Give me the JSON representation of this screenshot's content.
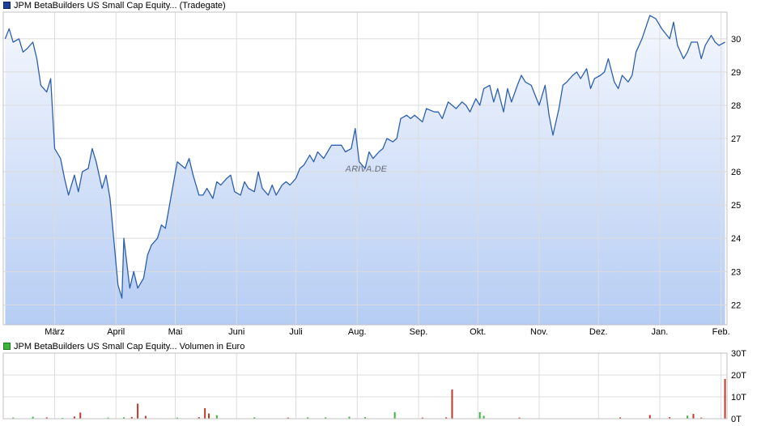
{
  "price_legend": {
    "label": "JPM BetaBuilders US Small Cap Equity... (Tradegate)",
    "color": "#1f3f9a"
  },
  "volume_legend": {
    "label": "JPM BetaBuilders US Small Cap Equity... Volumen in Euro",
    "color": "#3cb43c"
  },
  "watermark": "ARIVA.DE",
  "colors": {
    "line": "#2c5fae",
    "fill_top": "#f4f7fe",
    "fill_bottom": "#b6cdf3",
    "grid": "#dcdcdc",
    "vol_up": "#3cb43c",
    "vol_down": "#c0392b"
  },
  "chart_data": [
    {
      "type": "area",
      "y_ticks": [
        22,
        23,
        24,
        25,
        26,
        27,
        28,
        29,
        30
      ],
      "ylim": [
        21.4,
        30.8
      ],
      "x_ticks": [
        {
          "label": "März",
          "date": "2024-03-01"
        },
        {
          "label": "April",
          "date": "2024-04-01"
        },
        {
          "label": "Mai",
          "date": "2024-05-01"
        },
        {
          "label": "Juni",
          "date": "2024-06-01"
        },
        {
          "label": "Juli",
          "date": "2024-07-01"
        },
        {
          "label": "Aug.",
          "date": "2024-08-01"
        },
        {
          "label": "Sep.",
          "date": "2024-09-01"
        },
        {
          "label": "Okt.",
          "date": "2024-10-01"
        },
        {
          "label": "Nov.",
          "date": "2024-11-01"
        },
        {
          "label": "Dez.",
          "date": "2024-12-01"
        },
        {
          "label": "Jan.",
          "date": "2025-01-01"
        },
        {
          "label": "Feb.",
          "date": "2025-02-01"
        }
      ],
      "xlim": [
        "2024-02-04",
        "2025-02-04"
      ],
      "grid": true,
      "series": [
        {
          "x": [
            "2024-02-05",
            "2024-02-07",
            "2024-02-09",
            "2024-02-12",
            "2024-02-14",
            "2024-02-16",
            "2024-02-19",
            "2024-02-21",
            "2024-02-23",
            "2024-02-26",
            "2024-02-28",
            "2024-03-01",
            "2024-03-04",
            "2024-03-06",
            "2024-03-08",
            "2024-03-11",
            "2024-03-13",
            "2024-03-15",
            "2024-03-18",
            "2024-03-20",
            "2024-03-22",
            "2024-03-25",
            "2024-03-27",
            "2024-03-29",
            "2024-04-02",
            "2024-04-04",
            "2024-04-05",
            "2024-04-08",
            "2024-04-10",
            "2024-04-12",
            "2024-04-15",
            "2024-04-17",
            "2024-04-19",
            "2024-04-22",
            "2024-04-24",
            "2024-04-26",
            "2024-04-29",
            "2024-05-02",
            "2024-05-06",
            "2024-05-08",
            "2024-05-10",
            "2024-05-13",
            "2024-05-15",
            "2024-05-17",
            "2024-05-20",
            "2024-05-22",
            "2024-05-24",
            "2024-05-27",
            "2024-05-29",
            "2024-05-31",
            "2024-06-03",
            "2024-06-05",
            "2024-06-07",
            "2024-06-10",
            "2024-06-12",
            "2024-06-14",
            "2024-06-17",
            "2024-06-19",
            "2024-06-21",
            "2024-06-24",
            "2024-06-26",
            "2024-06-28",
            "2024-07-01",
            "2024-07-03",
            "2024-07-05",
            "2024-07-08",
            "2024-07-10",
            "2024-07-12",
            "2024-07-15",
            "2024-07-17",
            "2024-07-19",
            "2024-07-22",
            "2024-07-24",
            "2024-07-26",
            "2024-07-29",
            "2024-07-31",
            "2024-08-02",
            "2024-08-05",
            "2024-08-07",
            "2024-08-09",
            "2024-08-12",
            "2024-08-14",
            "2024-08-16",
            "2024-08-19",
            "2024-08-21",
            "2024-08-23",
            "2024-08-26",
            "2024-08-28",
            "2024-08-30",
            "2024-09-03",
            "2024-09-05",
            "2024-09-09",
            "2024-09-11",
            "2024-09-13",
            "2024-09-16",
            "2024-09-18",
            "2024-09-20",
            "2024-09-23",
            "2024-09-25",
            "2024-09-27",
            "2024-09-30",
            "2024-10-02",
            "2024-10-04",
            "2024-10-07",
            "2024-10-09",
            "2024-10-11",
            "2024-10-14",
            "2024-10-16",
            "2024-10-18",
            "2024-10-21",
            "2024-10-23",
            "2024-10-25",
            "2024-10-28",
            "2024-10-30",
            "2024-11-01",
            "2024-11-04",
            "2024-11-06",
            "2024-11-08",
            "2024-11-11",
            "2024-11-13",
            "2024-11-15",
            "2024-11-18",
            "2024-11-20",
            "2024-11-22",
            "2024-11-25",
            "2024-11-27",
            "2024-11-29",
            "2024-12-02",
            "2024-12-04",
            "2024-12-06",
            "2024-12-09",
            "2024-12-11",
            "2024-12-13",
            "2024-12-16",
            "2024-12-18",
            "2024-12-20",
            "2024-12-23",
            "2024-12-27",
            "2024-12-30",
            "2025-01-02",
            "2025-01-06",
            "2025-01-08",
            "2025-01-10",
            "2025-01-13",
            "2025-01-15",
            "2025-01-17",
            "2025-01-20",
            "2025-01-22",
            "2025-01-24",
            "2025-01-27",
            "2025-01-29",
            "2025-01-31",
            "2025-02-03"
          ],
          "y": [
            30.0,
            30.3,
            29.9,
            30.0,
            29.6,
            29.7,
            29.9,
            29.4,
            28.6,
            28.4,
            28.8,
            26.7,
            26.4,
            25.8,
            25.3,
            25.9,
            25.4,
            26.0,
            26.1,
            26.7,
            26.3,
            25.5,
            25.9,
            25.2,
            22.6,
            22.2,
            24.0,
            22.5,
            23.0,
            22.5,
            22.8,
            23.5,
            23.8,
            24.0,
            24.4,
            24.3,
            25.3,
            26.3,
            26.1,
            26.4,
            25.9,
            25.3,
            25.3,
            25.5,
            25.2,
            25.7,
            25.6,
            25.8,
            25.9,
            25.4,
            25.3,
            25.7,
            25.5,
            25.4,
            26.0,
            25.5,
            25.3,
            25.6,
            25.3,
            25.6,
            25.7,
            25.6,
            25.8,
            26.1,
            26.2,
            26.5,
            26.3,
            26.6,
            26.4,
            26.6,
            26.8,
            26.8,
            26.8,
            26.6,
            26.7,
            27.3,
            26.3,
            26.1,
            26.6,
            26.4,
            26.6,
            26.7,
            27.0,
            26.9,
            27.0,
            27.6,
            27.7,
            27.6,
            27.7,
            27.5,
            27.9,
            27.8,
            27.8,
            27.6,
            28.1,
            28.0,
            27.9,
            28.1,
            28.0,
            27.8,
            28.2,
            28.0,
            28.5,
            28.6,
            28.1,
            28.5,
            27.8,
            28.5,
            28.1,
            28.6,
            28.9,
            28.7,
            28.6,
            28.3,
            28.0,
            28.6,
            27.7,
            27.1,
            27.9,
            28.6,
            28.7,
            28.9,
            29.0,
            28.8,
            29.1,
            28.5,
            28.8,
            28.9,
            29.0,
            29.4,
            28.7,
            28.5,
            28.9,
            28.7,
            28.9,
            29.6,
            30.0,
            30.7,
            30.6,
            30.3,
            30.0,
            30.5,
            29.8,
            29.4,
            29.6,
            29.9,
            29.9,
            29.4,
            29.8,
            30.1,
            29.9,
            29.8,
            29.9
          ]
        }
      ]
    },
    {
      "type": "bar",
      "y_ticks": [
        {
          "label": "0T",
          "value": 0
        },
        {
          "label": "10T",
          "value": 10
        },
        {
          "label": "20T",
          "value": 20
        },
        {
          "label": "30T",
          "value": 30
        }
      ],
      "ylim": [
        0,
        30
      ],
      "grid": true,
      "bars": [
        {
          "date": "2024-02-09",
          "value": 0.5,
          "dir": "up"
        },
        {
          "date": "2024-02-19",
          "value": 0.9,
          "dir": "up"
        },
        {
          "date": "2024-02-26",
          "value": 0.6,
          "dir": "down"
        },
        {
          "date": "2024-03-05",
          "value": 0.4,
          "dir": "up"
        },
        {
          "date": "2024-03-11",
          "value": 1.0,
          "dir": "down"
        },
        {
          "date": "2024-03-14",
          "value": 2.8,
          "dir": "down"
        },
        {
          "date": "2024-03-28",
          "value": 0.5,
          "dir": "up"
        },
        {
          "date": "2024-04-05",
          "value": 0.6,
          "dir": "up"
        },
        {
          "date": "2024-04-09",
          "value": 0.8,
          "dir": "down"
        },
        {
          "date": "2024-04-12",
          "value": 6.9,
          "dir": "down"
        },
        {
          "date": "2024-04-16",
          "value": 1.3,
          "dir": "down"
        },
        {
          "date": "2024-05-02",
          "value": 0.5,
          "dir": "up"
        },
        {
          "date": "2024-05-13",
          "value": 0.7,
          "dir": "down"
        },
        {
          "date": "2024-05-16",
          "value": 4.8,
          "dir": "down"
        },
        {
          "date": "2024-05-18",
          "value": 2.4,
          "dir": "down"
        },
        {
          "date": "2024-05-22",
          "value": 1.6,
          "dir": "up"
        },
        {
          "date": "2024-06-10",
          "value": 0.6,
          "dir": "up"
        },
        {
          "date": "2024-06-27",
          "value": 0.5,
          "dir": "down"
        },
        {
          "date": "2024-07-07",
          "value": 0.6,
          "dir": "up"
        },
        {
          "date": "2024-07-16",
          "value": 0.6,
          "dir": "up"
        },
        {
          "date": "2024-07-28",
          "value": 0.9,
          "dir": "up"
        },
        {
          "date": "2024-08-05",
          "value": 0.7,
          "dir": "up"
        },
        {
          "date": "2024-08-20",
          "value": 3.0,
          "dir": "up"
        },
        {
          "date": "2024-09-03",
          "value": 0.5,
          "dir": "down"
        },
        {
          "date": "2024-09-15",
          "value": 0.6,
          "dir": "down"
        },
        {
          "date": "2024-09-18",
          "value": 13.4,
          "dir": "down"
        },
        {
          "date": "2024-10-02",
          "value": 3.0,
          "dir": "up"
        },
        {
          "date": "2024-10-04",
          "value": 1.3,
          "dir": "up"
        },
        {
          "date": "2024-10-22",
          "value": 0.5,
          "dir": "down"
        },
        {
          "date": "2024-12-12",
          "value": 0.6,
          "dir": "down"
        },
        {
          "date": "2024-12-27",
          "value": 1.7,
          "dir": "down"
        },
        {
          "date": "2025-01-06",
          "value": 0.7,
          "dir": "down"
        },
        {
          "date": "2025-01-15",
          "value": 1.4,
          "dir": "up"
        },
        {
          "date": "2025-01-18",
          "value": 2.2,
          "dir": "down"
        },
        {
          "date": "2025-01-22",
          "value": 0.5,
          "dir": "down"
        },
        {
          "date": "2025-02-03",
          "value": 18.2,
          "dir": "down"
        }
      ]
    }
  ]
}
